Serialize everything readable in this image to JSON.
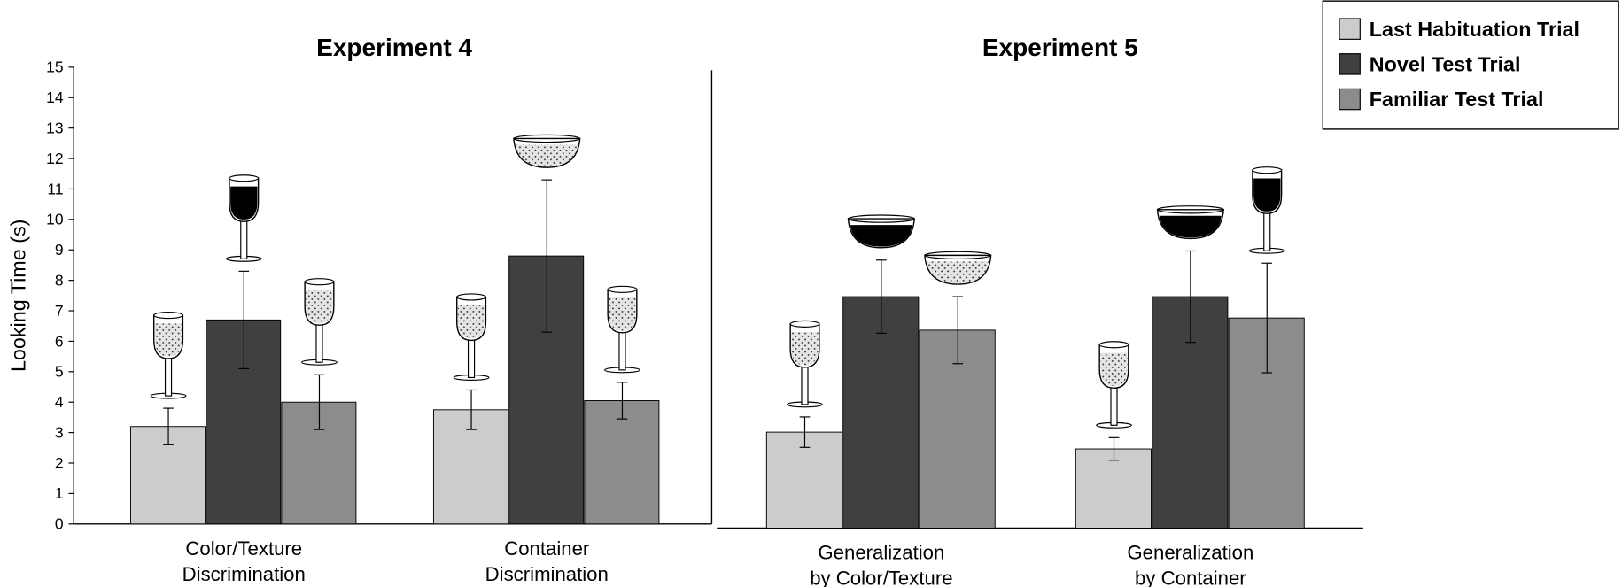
{
  "chart_data": [
    {
      "type": "bar",
      "title": "Experiment 4",
      "ylabel": "Looking Time (s)",
      "categories": [
        [
          "Color/Texture",
          "Discrimination"
        ],
        [
          "Container",
          "Discrimination"
        ]
      ],
      "ylim": [
        0,
        15
      ],
      "yticks": [
        0,
        1,
        2,
        3,
        4,
        5,
        6,
        7,
        8,
        9,
        10,
        11,
        12,
        13,
        14,
        15
      ],
      "legend": "upper right",
      "series": [
        {
          "name": "Last Habituation Trial",
          "color": "#cccccc",
          "values": [
            3.2,
            3.75
          ],
          "errors": [
            0.6,
            0.65
          ]
        },
        {
          "name": "Novel Test Trial",
          "color": "#404040",
          "values": [
            6.7,
            8.8
          ],
          "errors": [
            1.6,
            2.5
          ]
        },
        {
          "name": "Familiar Test Trial",
          "color": "#8c8c8c",
          "values": [
            4.0,
            4.05
          ],
          "errors": [
            0.9,
            0.6
          ]
        }
      ]
    },
    {
      "type": "bar",
      "title": "Experiment 5",
      "categories": [
        [
          "Generalization",
          "by Color/Texture"
        ],
        [
          "Generalization",
          "by Container"
        ]
      ],
      "ylim": [
        0,
        15
      ],
      "series": [
        {
          "color": "#cccccc",
          "values": [
            3.15,
            2.6
          ],
          "errors": [
            0.5,
            0.37
          ]
        },
        {
          "color": "#404040",
          "values": [
            7.6,
            7.6
          ],
          "errors": [
            1.2,
            1.5
          ]
        },
        {
          "color": "#8c8c8c",
          "values": [
            6.5,
            6.9
          ],
          "errors": [
            1.1,
            1.8
          ]
        }
      ]
    }
  ]
}
